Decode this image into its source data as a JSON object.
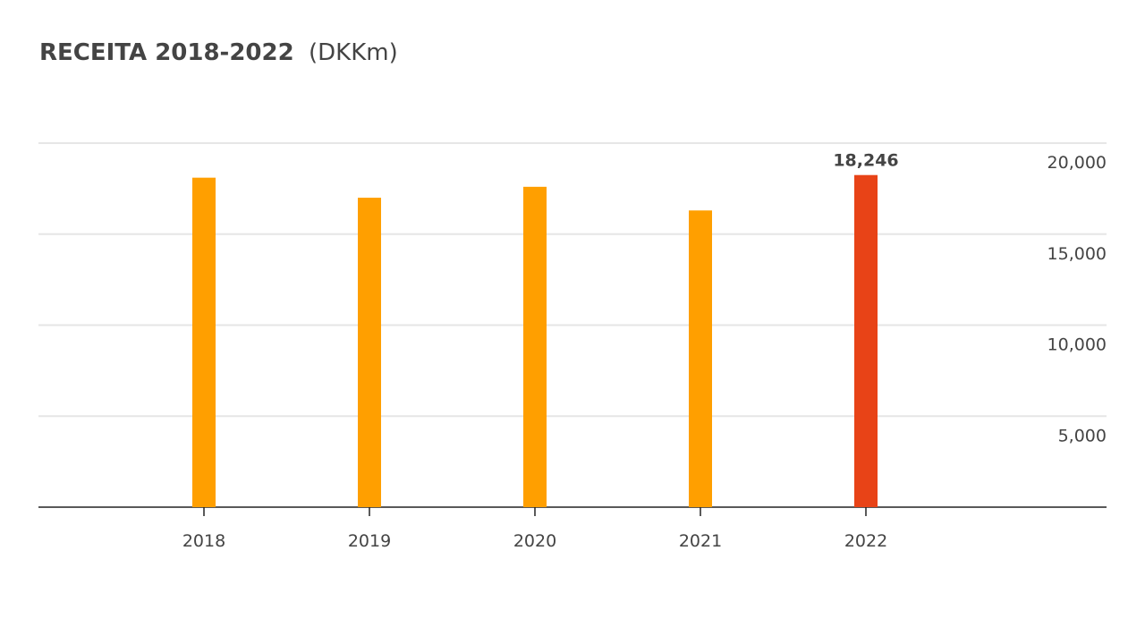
{
  "chart_data": {
    "type": "bar",
    "title": "RECEITA 2018-2022",
    "unit": "(DKKm)",
    "categories": [
      "2018",
      "2019",
      "2020",
      "2021",
      "2022"
    ],
    "values": [
      18100,
      17000,
      17600,
      16300,
      18246
    ],
    "value_labels": [
      null,
      null,
      null,
      null,
      "18,246"
    ],
    "colors": [
      "#ff9f00",
      "#ff9f00",
      "#ff9f00",
      "#ff9f00",
      "#e84317"
    ],
    "ylim": [
      0,
      20000
    ],
    "yticks": [
      {
        "value": 5000,
        "label": "5,000"
      },
      {
        "value": 10000,
        "label": "10,000"
      },
      {
        "value": 15000,
        "label": "15,000"
      },
      {
        "value": 20000,
        "label": "20,000"
      }
    ],
    "grid": true
  }
}
